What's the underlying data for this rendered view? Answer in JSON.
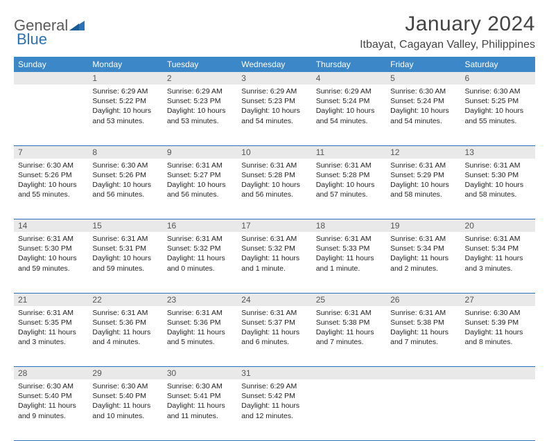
{
  "logo": {
    "text1": "General",
    "text2": "Blue"
  },
  "title": "January 2024",
  "location": "Itbayat, Cagayan Valley, Philippines",
  "weekdays": [
    "Sunday",
    "Monday",
    "Tuesday",
    "Wednesday",
    "Thursday",
    "Friday",
    "Saturday"
  ],
  "colors": {
    "header_bg": "#3b87c8",
    "header_text": "#ffffff",
    "daynum_bg": "#e9e9e9",
    "rule": "#2a72b5",
    "logo_gray": "#5a5a5a",
    "logo_blue": "#2a72b5"
  },
  "weeks": [
    {
      "nums": [
        "",
        "1",
        "2",
        "3",
        "4",
        "5",
        "6"
      ],
      "cells": [
        null,
        {
          "sunrise": "6:29 AM",
          "sunset": "5:22 PM",
          "daylight": "10 hours and 53 minutes."
        },
        {
          "sunrise": "6:29 AM",
          "sunset": "5:23 PM",
          "daylight": "10 hours and 53 minutes."
        },
        {
          "sunrise": "6:29 AM",
          "sunset": "5:23 PM",
          "daylight": "10 hours and 54 minutes."
        },
        {
          "sunrise": "6:29 AM",
          "sunset": "5:24 PM",
          "daylight": "10 hours and 54 minutes."
        },
        {
          "sunrise": "6:30 AM",
          "sunset": "5:24 PM",
          "daylight": "10 hours and 54 minutes."
        },
        {
          "sunrise": "6:30 AM",
          "sunset": "5:25 PM",
          "daylight": "10 hours and 55 minutes."
        }
      ]
    },
    {
      "nums": [
        "7",
        "8",
        "9",
        "10",
        "11",
        "12",
        "13"
      ],
      "cells": [
        {
          "sunrise": "6:30 AM",
          "sunset": "5:26 PM",
          "daylight": "10 hours and 55 minutes."
        },
        {
          "sunrise": "6:30 AM",
          "sunset": "5:26 PM",
          "daylight": "10 hours and 56 minutes."
        },
        {
          "sunrise": "6:31 AM",
          "sunset": "5:27 PM",
          "daylight": "10 hours and 56 minutes."
        },
        {
          "sunrise": "6:31 AM",
          "sunset": "5:28 PM",
          "daylight": "10 hours and 56 minutes."
        },
        {
          "sunrise": "6:31 AM",
          "sunset": "5:28 PM",
          "daylight": "10 hours and 57 minutes."
        },
        {
          "sunrise": "6:31 AM",
          "sunset": "5:29 PM",
          "daylight": "10 hours and 58 minutes."
        },
        {
          "sunrise": "6:31 AM",
          "sunset": "5:30 PM",
          "daylight": "10 hours and 58 minutes."
        }
      ]
    },
    {
      "nums": [
        "14",
        "15",
        "16",
        "17",
        "18",
        "19",
        "20"
      ],
      "cells": [
        {
          "sunrise": "6:31 AM",
          "sunset": "5:30 PM",
          "daylight": "10 hours and 59 minutes."
        },
        {
          "sunrise": "6:31 AM",
          "sunset": "5:31 PM",
          "daylight": "10 hours and 59 minutes."
        },
        {
          "sunrise": "6:31 AM",
          "sunset": "5:32 PM",
          "daylight": "11 hours and 0 minutes."
        },
        {
          "sunrise": "6:31 AM",
          "sunset": "5:32 PM",
          "daylight": "11 hours and 1 minute."
        },
        {
          "sunrise": "6:31 AM",
          "sunset": "5:33 PM",
          "daylight": "11 hours and 1 minute."
        },
        {
          "sunrise": "6:31 AM",
          "sunset": "5:34 PM",
          "daylight": "11 hours and 2 minutes."
        },
        {
          "sunrise": "6:31 AM",
          "sunset": "5:34 PM",
          "daylight": "11 hours and 3 minutes."
        }
      ]
    },
    {
      "nums": [
        "21",
        "22",
        "23",
        "24",
        "25",
        "26",
        "27"
      ],
      "cells": [
        {
          "sunrise": "6:31 AM",
          "sunset": "5:35 PM",
          "daylight": "11 hours and 3 minutes."
        },
        {
          "sunrise": "6:31 AM",
          "sunset": "5:36 PM",
          "daylight": "11 hours and 4 minutes."
        },
        {
          "sunrise": "6:31 AM",
          "sunset": "5:36 PM",
          "daylight": "11 hours and 5 minutes."
        },
        {
          "sunrise": "6:31 AM",
          "sunset": "5:37 PM",
          "daylight": "11 hours and 6 minutes."
        },
        {
          "sunrise": "6:31 AM",
          "sunset": "5:38 PM",
          "daylight": "11 hours and 7 minutes."
        },
        {
          "sunrise": "6:31 AM",
          "sunset": "5:38 PM",
          "daylight": "11 hours and 7 minutes."
        },
        {
          "sunrise": "6:30 AM",
          "sunset": "5:39 PM",
          "daylight": "11 hours and 8 minutes."
        }
      ]
    },
    {
      "nums": [
        "28",
        "29",
        "30",
        "31",
        "",
        "",
        ""
      ],
      "cells": [
        {
          "sunrise": "6:30 AM",
          "sunset": "5:40 PM",
          "daylight": "11 hours and 9 minutes."
        },
        {
          "sunrise": "6:30 AM",
          "sunset": "5:40 PM",
          "daylight": "11 hours and 10 minutes."
        },
        {
          "sunrise": "6:30 AM",
          "sunset": "5:41 PM",
          "daylight": "11 hours and 11 minutes."
        },
        {
          "sunrise": "6:29 AM",
          "sunset": "5:42 PM",
          "daylight": "11 hours and 12 minutes."
        },
        null,
        null,
        null
      ]
    }
  ],
  "labels": {
    "sunrise": "Sunrise:",
    "sunset": "Sunset:",
    "daylight": "Daylight:"
  }
}
